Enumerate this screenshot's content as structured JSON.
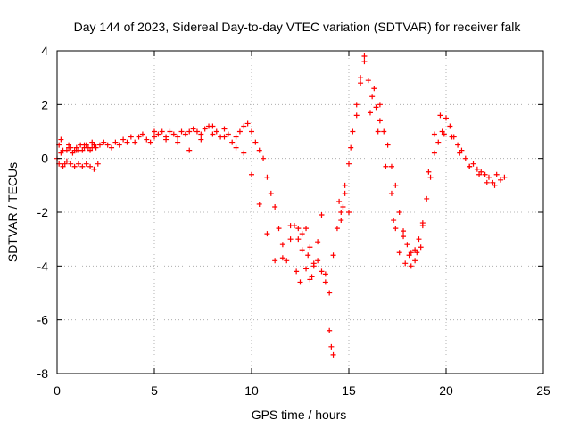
{
  "chart_data": {
    "type": "scatter",
    "title": "Day 144 of 2023, Sidereal Day-to-day VTEC variation (SDTVAR) for receiver falk",
    "xlabel": "GPS time / hours",
    "ylabel": "SDTVAR / TECUs",
    "xlim": [
      0,
      25
    ],
    "ylim": [
      -8,
      4
    ],
    "xticks": [
      0,
      5,
      10,
      15,
      20,
      25
    ],
    "yticks": [
      -8,
      -6,
      -4,
      -2,
      0,
      2,
      4
    ],
    "grid": true,
    "marker": "+",
    "color": "#ff0000",
    "series": [
      {
        "name": "SDTVAR",
        "x": [
          0.0,
          0.1,
          0.2,
          0.3,
          0.4,
          0.5,
          0.6,
          0.7,
          0.8,
          0.9,
          1.0,
          1.1,
          1.2,
          1.3,
          1.4,
          1.5,
          1.6,
          1.7,
          1.8,
          1.9,
          2.0,
          2.2,
          2.4,
          2.6,
          2.8,
          3.0,
          3.2,
          3.4,
          3.6,
          3.8,
          4.0,
          4.2,
          4.4,
          4.6,
          4.8,
          5.0,
          5.2,
          5.4,
          5.6,
          5.8,
          6.0,
          6.2,
          6.4,
          6.6,
          6.8,
          7.0,
          7.2,
          7.4,
          7.6,
          7.8,
          8.0,
          8.2,
          8.4,
          8.6,
          8.8,
          9.0,
          9.2,
          9.4,
          9.6,
          9.8,
          10.0,
          10.2,
          10.4,
          10.6,
          10.8,
          11.0,
          11.2,
          11.4,
          11.6,
          11.8,
          12.0,
          12.2,
          12.4,
          12.6,
          12.8,
          13.0,
          13.2,
          13.4,
          13.6,
          13.8,
          14.0,
          14.2,
          14.4,
          14.6,
          14.8,
          15.0,
          15.2,
          15.4,
          15.6,
          15.8,
          16.0,
          16.2,
          16.4,
          16.6,
          16.8,
          17.0,
          17.2,
          17.4,
          17.6,
          17.8,
          18.0,
          18.2,
          18.4,
          18.6,
          18.8,
          19.0,
          19.2,
          19.4,
          19.6,
          19.8,
          20.0,
          20.2,
          20.4,
          20.6,
          20.8,
          21.0,
          21.2,
          21.4,
          21.6,
          21.8,
          22.0,
          22.2,
          22.4,
          22.6,
          22.8,
          23.0,
          0.1,
          0.3,
          0.5,
          0.7,
          0.9,
          1.1,
          1.3,
          1.5,
          1.7,
          1.9,
          2.1,
          0.2,
          0.6,
          1.0,
          1.4,
          1.8,
          5.0,
          5.6,
          6.2,
          6.8,
          7.4,
          8.0,
          8.6,
          9.2,
          9.6,
          10.0,
          10.4,
          10.8,
          11.2,
          11.6,
          12.0,
          12.4,
          12.6,
          12.8,
          13.0,
          13.2,
          13.4,
          13.6,
          13.8,
          14.0,
          14.1,
          14.2,
          14.5,
          14.8,
          15.1,
          15.4,
          15.6,
          15.8,
          16.3,
          16.6,
          16.9,
          17.3,
          17.6,
          17.9,
          18.2,
          18.5,
          18.8,
          19.1,
          19.4,
          19.7,
          19.9,
          20.3,
          20.7,
          21.2,
          21.7,
          22.1,
          22.5,
          13.1,
          12.9,
          12.5,
          12.3,
          14.6,
          14.7,
          15.0,
          16.1,
          16.5,
          17.2,
          17.4,
          17.8,
          18.1,
          18.4,
          18.7
        ],
        "y": [
          0.0,
          0.5,
          0.7,
          0.3,
          -0.2,
          0.3,
          0.5,
          0.4,
          0.2,
          0.3,
          0.4,
          0.3,
          0.5,
          0.3,
          0.4,
          0.5,
          0.4,
          0.3,
          0.4,
          0.5,
          0.4,
          0.5,
          0.6,
          0.5,
          0.4,
          0.6,
          0.5,
          0.7,
          0.6,
          0.8,
          0.6,
          0.8,
          0.9,
          0.7,
          0.6,
          0.8,
          0.9,
          1.0,
          0.8,
          1.0,
          0.9,
          0.8,
          1.0,
          0.9,
          1.0,
          1.1,
          1.0,
          0.9,
          1.1,
          1.2,
          0.9,
          1.0,
          0.8,
          1.1,
          0.9,
          0.6,
          0.8,
          1.0,
          1.2,
          1.3,
          1.0,
          0.6,
          0.3,
          0.0,
          -0.7,
          -1.3,
          -1.8,
          -2.6,
          -3.2,
          -3.8,
          -3.0,
          -2.5,
          -2.6,
          -2.8,
          -2.6,
          -3.3,
          -3.9,
          -3.8,
          -4.2,
          -4.6,
          -5.0,
          -3.6,
          -2.6,
          -2.0,
          -1.3,
          -0.2,
          1.0,
          2.0,
          2.8,
          3.6,
          2.9,
          2.3,
          1.9,
          1.4,
          1.0,
          0.5,
          -0.3,
          -1.0,
          -2.0,
          -2.9,
          -3.2,
          -3.5,
          -3.4,
          -3.0,
          -2.5,
          -1.5,
          -0.7,
          0.2,
          0.6,
          1.0,
          1.5,
          1.2,
          0.8,
          0.5,
          0.3,
          0.0,
          -0.3,
          -0.2,
          -0.4,
          -0.5,
          -0.6,
          -0.7,
          -0.9,
          -0.6,
          -0.8,
          -0.7,
          -0.2,
          -0.3,
          -0.1,
          -0.2,
          -0.3,
          -0.2,
          -0.3,
          -0.2,
          -0.3,
          -0.4,
          -0.2,
          0.2,
          0.4,
          0.3,
          0.5,
          0.6,
          1.0,
          0.7,
          0.6,
          0.3,
          0.7,
          1.2,
          0.8,
          0.4,
          0.2,
          -0.6,
          -1.7,
          -2.8,
          -3.8,
          -3.7,
          -2.5,
          -3.0,
          -3.4,
          -4.1,
          -4.5,
          -4.0,
          -3.1,
          -2.1,
          -4.3,
          -6.4,
          -7.0,
          -7.3,
          -1.6,
          -1.0,
          0.4,
          1.6,
          3.0,
          3.8,
          2.6,
          2.0,
          -0.3,
          -2.3,
          -3.5,
          -3.9,
          -4.0,
          -3.5,
          -2.4,
          -0.5,
          0.9,
          1.6,
          0.9,
          0.8,
          0.2,
          -0.3,
          -0.6,
          -0.9,
          -1.0,
          -4.4,
          -3.6,
          -4.6,
          -4.2,
          -2.3,
          -1.8,
          -2.0,
          1.7,
          1.0,
          -1.3,
          -2.6,
          -2.7,
          -3.6,
          -3.8,
          -3.3
        ]
      }
    ]
  }
}
